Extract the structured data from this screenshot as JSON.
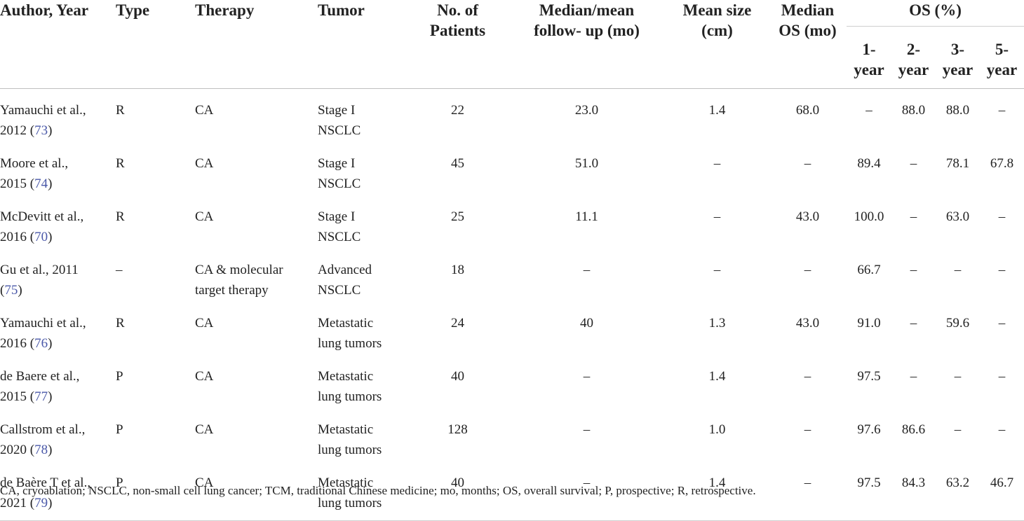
{
  "headers": {
    "author_year": "Author, Year",
    "type": "Type",
    "therapy": "Therapy",
    "tumor": "Tumor",
    "patients": [
      "No. of",
      "Patients"
    ],
    "followup": [
      "Median/mean",
      "follow- up (mo)"
    ],
    "mean_size": [
      "Mean size",
      "(cm)"
    ],
    "median_os": [
      "Median",
      "OS (mo)"
    ],
    "os_group": "OS (%)",
    "os_years": [
      [
        "1-",
        "year"
      ],
      [
        "2-",
        "year"
      ],
      [
        "3-",
        "year"
      ],
      [
        "5-",
        "year"
      ]
    ]
  },
  "rows": [
    {
      "author": [
        "Yamauchi et al.,",
        "2012 ("
      ],
      "ref": "73",
      "type": "R",
      "therapy": [
        "CA"
      ],
      "tumor": [
        "Stage I",
        "NSCLC"
      ],
      "patients": "22",
      "followup": "23.0",
      "size": "1.4",
      "median_os": "68.0",
      "os1": "–",
      "os2": "88.0",
      "os3": "88.0",
      "os5": "–"
    },
    {
      "author": [
        "Moore et al.,",
        "2015 ("
      ],
      "ref": "74",
      "type": "R",
      "therapy": [
        "CA"
      ],
      "tumor": [
        "Stage I",
        "NSCLC"
      ],
      "patients": "45",
      "followup": "51.0",
      "size": "–",
      "median_os": "–",
      "os1": "89.4",
      "os2": "–",
      "os3": "78.1",
      "os5": "67.8"
    },
    {
      "author": [
        "McDevitt et al.,",
        "2016 ("
      ],
      "ref": "70",
      "type": "R",
      "therapy": [
        "CA"
      ],
      "tumor": [
        "Stage I",
        "NSCLC"
      ],
      "patients": "25",
      "followup": "11.1",
      "size": "–",
      "median_os": "43.0",
      "os1": "100.0",
      "os2": "–",
      "os3": "63.0",
      "os5": "–"
    },
    {
      "author": [
        "Gu et al., 2011",
        "("
      ],
      "ref": "75",
      "type": "–",
      "therapy": [
        "CA & molecular",
        "target therapy"
      ],
      "tumor": [
        "Advanced",
        "NSCLC"
      ],
      "patients": "18",
      "followup": "–",
      "size": "–",
      "median_os": "–",
      "os1": "66.7",
      "os2": "–",
      "os3": "–",
      "os5": "–"
    },
    {
      "author": [
        "Yamauchi et al.,",
        "2016 ("
      ],
      "ref": "76",
      "type": "R",
      "therapy": [
        "CA"
      ],
      "tumor": [
        "Metastatic",
        "lung tumors"
      ],
      "patients": "24",
      "followup": "40",
      "size": "1.3",
      "median_os": "43.0",
      "os1": "91.0",
      "os2": "–",
      "os3": "59.6",
      "os5": "–"
    },
    {
      "author": [
        "de Baere et al.,",
        "2015 ("
      ],
      "ref": "77",
      "type": "P",
      "therapy": [
        "CA"
      ],
      "tumor": [
        "Metastatic",
        "lung tumors"
      ],
      "patients": "40",
      "followup": "–",
      "size": "1.4",
      "median_os": "–",
      "os1": "97.5",
      "os2": "–",
      "os3": "–",
      "os5": "–"
    },
    {
      "author": [
        "Callstrom et al.,",
        "2020 ("
      ],
      "ref": "78",
      "type": "P",
      "therapy": [
        "CA"
      ],
      "tumor": [
        "Metastatic",
        "lung tumors"
      ],
      "patients": "128",
      "followup": "–",
      "size": "1.0",
      "median_os": "–",
      "os1": "97.6",
      "os2": "86.6",
      "os3": "–",
      "os5": "–"
    },
    {
      "author": [
        "de Baère T et al.,",
        "2021 ("
      ],
      "ref": "79",
      "type": "P",
      "therapy": [
        "CA"
      ],
      "tumor": [
        "Metastatic",
        "lung tumors"
      ],
      "patients": "40",
      "followup": "–",
      "size": "1.4",
      "median_os": "–",
      "os1": "97.5",
      "os2": "84.3",
      "os3": "63.2",
      "os5": "46.7"
    }
  ],
  "footnote": "CA, cryoablation; NSCLC, non-small cell lung cancer; TCM, traditional Chinese medicine; mo, months; OS, overall survival; P, prospective; R, retrospective."
}
